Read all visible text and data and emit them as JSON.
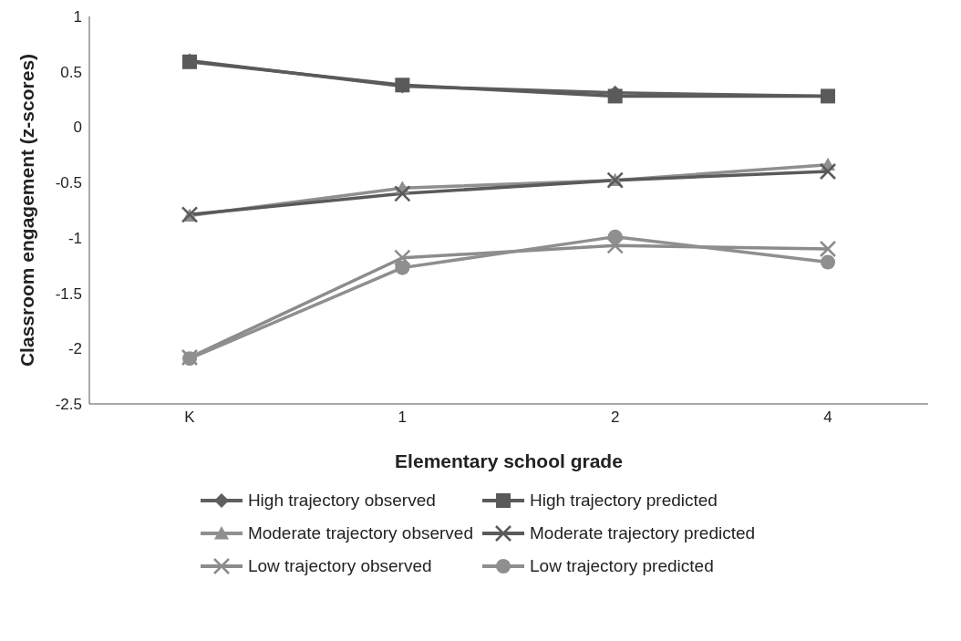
{
  "chart_data": {
    "type": "line",
    "xlabel": "Elementary school grade",
    "ylabel": "Classroom engagement (z-scores)",
    "categories": [
      "K",
      "1",
      "2",
      "4"
    ],
    "ylim": [
      -2.5,
      1
    ],
    "yticks": [
      -2.5,
      -2,
      -1.5,
      -1,
      -0.5,
      0,
      0.5,
      1
    ],
    "grid": false,
    "legend": "bottom",
    "line_style": "solid",
    "series": [
      {
        "name": "High trajectory observed",
        "color": "#5f5f5f",
        "marker": "diamond",
        "values": [
          0.6,
          0.37,
          0.31,
          0.28
        ]
      },
      {
        "name": "High trajectory predicted",
        "color": "#5a5a5a",
        "marker": "square",
        "values": [
          0.59,
          0.38,
          0.28,
          0.28
        ]
      },
      {
        "name": "Moderate trajectory observed",
        "color": "#8f8f8f",
        "marker": "triangle",
        "values": [
          -0.8,
          -0.55,
          -0.48,
          -0.34
        ]
      },
      {
        "name": "Moderate trajectory predicted",
        "color": "#5a5a5a",
        "marker": "cross",
        "values": [
          -0.79,
          -0.6,
          -0.48,
          -0.4
        ]
      },
      {
        "name": "Low trajectory observed",
        "color": "#8c8c8c",
        "marker": "cross",
        "values": [
          -2.08,
          -1.18,
          -1.07,
          -1.1
        ]
      },
      {
        "name": "Low trajectory predicted",
        "color": "#8f8f8f",
        "marker": "circle",
        "values": [
          -2.09,
          -1.27,
          -0.99,
          -1.22
        ]
      }
    ]
  }
}
